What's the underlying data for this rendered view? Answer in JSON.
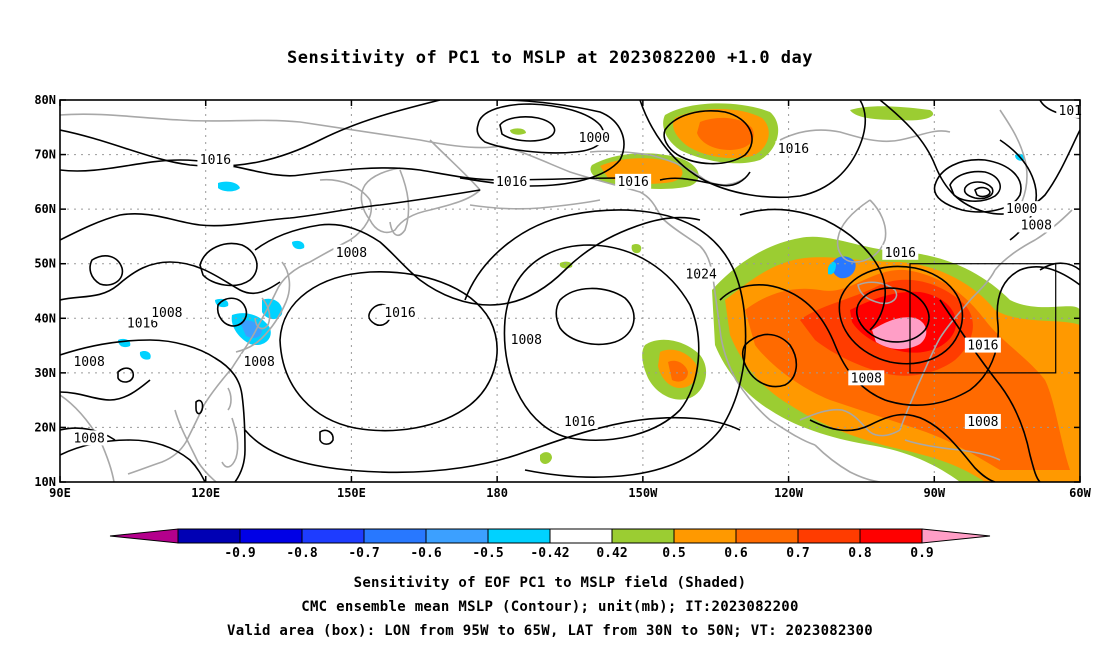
{
  "title": "Sensitivity of PC1 to MSLP at 2023082200 +1.0 day",
  "map": {
    "lon_range": [
      90,
      300
    ],
    "lat_range": [
      10,
      80
    ],
    "lat_ticks": [
      {
        "lat": 80,
        "label": "80N"
      },
      {
        "lat": 70,
        "label": "70N"
      },
      {
        "lat": 60,
        "label": "60N"
      },
      {
        "lat": 50,
        "label": "50N"
      },
      {
        "lat": 40,
        "label": "40N"
      },
      {
        "lat": 30,
        "label": "30N"
      },
      {
        "lat": 20,
        "label": "20N"
      },
      {
        "lat": 10,
        "label": "10N"
      }
    ],
    "lon_ticks": [
      {
        "lon": 90,
        "label": "90E"
      },
      {
        "lon": 120,
        "label": "120E"
      },
      {
        "lon": 150,
        "label": "150E"
      },
      {
        "lon": 180,
        "label": "180"
      },
      {
        "lon": 210,
        "label": "150W"
      },
      {
        "lon": 240,
        "label": "120W"
      },
      {
        "lon": 270,
        "label": "90W"
      },
      {
        "lon": 300,
        "label": "60W"
      }
    ],
    "contour_labels": [
      {
        "text": "1000",
        "lon": 200,
        "lat": 73
      },
      {
        "text": "1016",
        "lon": 122,
        "lat": 69
      },
      {
        "text": "1016",
        "lon": 183,
        "lat": 65
      },
      {
        "text": "1016",
        "lon": 208,
        "lat": 65
      },
      {
        "text": "1016",
        "lon": 241,
        "lat": 71
      },
      {
        "text": "1016",
        "lon": 107,
        "lat": 39
      },
      {
        "text": "1016",
        "lon": 160,
        "lat": 41
      },
      {
        "text": "1016",
        "lon": 197,
        "lat": 21
      },
      {
        "text": "1016",
        "lon": 263,
        "lat": 52
      },
      {
        "text": "1016",
        "lon": 280,
        "lat": 35
      },
      {
        "text": "1008",
        "lon": 150,
        "lat": 52
      },
      {
        "text": "1008",
        "lon": 112,
        "lat": 41
      },
      {
        "text": "1008",
        "lon": 131,
        "lat": 32
      },
      {
        "text": "1008",
        "lon": 96,
        "lat": 32
      },
      {
        "text": "1008",
        "lon": 96,
        "lat": 18
      },
      {
        "text": "1008",
        "lon": 186,
        "lat": 36
      },
      {
        "text": "1008",
        "lon": 256,
        "lat": 29
      },
      {
        "text": "1008",
        "lon": 280,
        "lat": 21
      },
      {
        "text": "1008",
        "lon": 291,
        "lat": 57
      },
      {
        "text": "1000",
        "lon": 288,
        "lat": 60
      },
      {
        "text": "1024",
        "lon": 222,
        "lat": 48
      },
      {
        "text": "101",
        "lon": 298,
        "lat": 78
      }
    ],
    "valid_box": {
      "lon": [
        265,
        295
      ],
      "lat": [
        30,
        50
      ]
    }
  },
  "colorbar": {
    "colors": [
      "#b4008c",
      "#0000b4",
      "#0000e6",
      "#1e3cff",
      "#2878ff",
      "#3ca0ff",
      "#00d2ff",
      "#ffffff",
      "#9bcd32",
      "#ff9900",
      "#ff6a00",
      "#ff3c00",
      "#ff0000",
      "#ff9ec6"
    ],
    "labels": [
      "-0.9",
      "-0.8",
      "-0.7",
      "-0.6",
      "-0.5",
      "-0.42",
      "0.42",
      "0.5",
      "0.6",
      "0.7",
      "0.8",
      "0.9"
    ]
  },
  "captions": [
    "Sensitivity of EOF PC1 to MSLP field (Shaded)",
    "CMC ensemble mean MSLP (Contour); unit(mb); IT:2023082200",
    "Valid area (box): LON from 95W to 65W, LAT from 30N to 50N; VT: 2023082300"
  ]
}
